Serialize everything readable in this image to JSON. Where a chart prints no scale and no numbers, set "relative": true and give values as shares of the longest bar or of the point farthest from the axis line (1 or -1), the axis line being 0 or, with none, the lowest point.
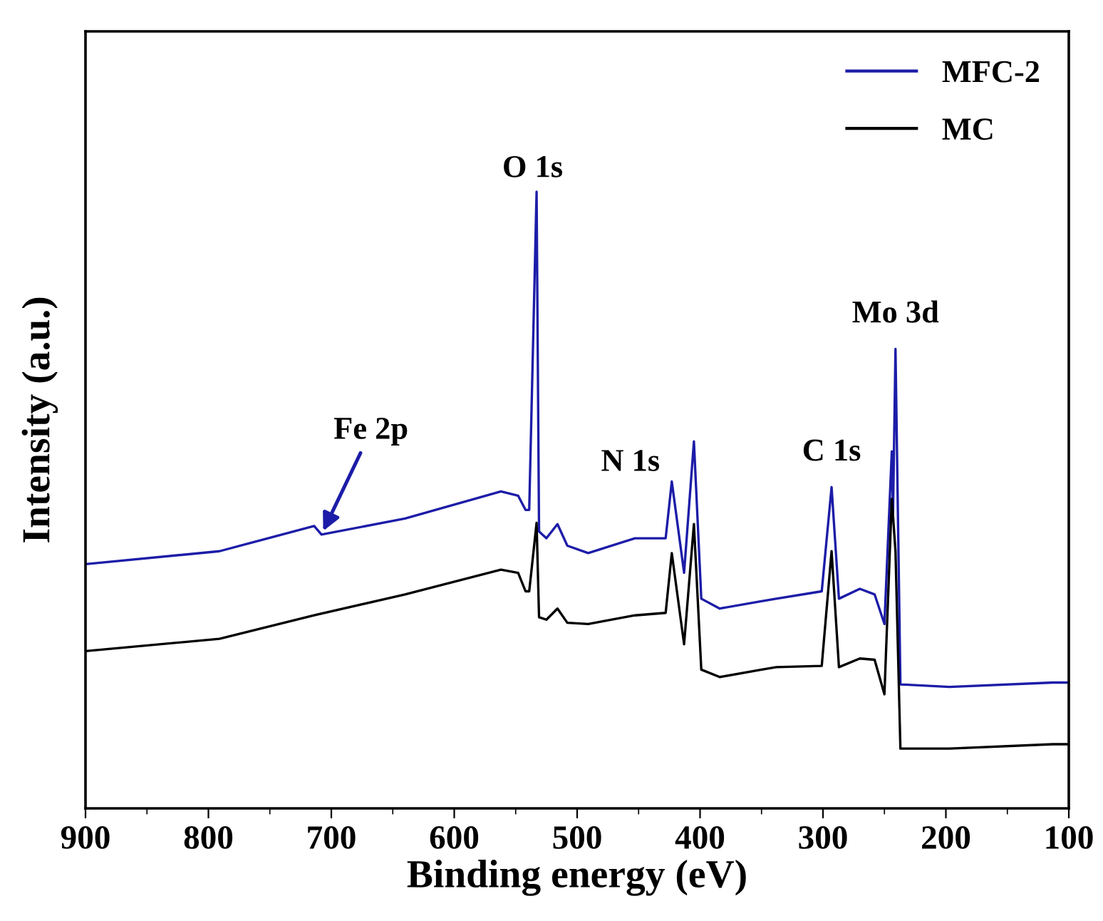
{
  "chart_data": {
    "type": "line",
    "relative": true,
    "xlabel": "Binding energy (eV)",
    "ylabel": "Intensity (a.u.)",
    "xlim": [
      900,
      100
    ],
    "xticks": [
      900,
      800,
      700,
      600,
      500,
      400,
      300,
      200,
      100
    ],
    "legend": "top right",
    "grid": false,
    "marker": "none",
    "line_style": "solid",
    "series": [
      {
        "name": "MFC-2",
        "color": "#1c1ca8",
        "x": [
          900,
          791,
          714,
          708,
          640,
          562,
          548,
          542,
          539,
          533,
          531,
          525,
          516,
          508,
          491,
          453,
          428,
          423,
          413,
          405,
          399,
          384,
          350,
          338,
          301,
          293,
          287,
          270,
          258,
          250,
          244,
          243,
          241,
          237,
          197,
          113,
          100
        ],
        "values": [
          0.396,
          0.417,
          0.458,
          0.444,
          0.47,
          0.514,
          0.507,
          0.484,
          0.484,
          1.0,
          0.449,
          0.438,
          0.461,
          0.426,
          0.414,
          0.438,
          0.438,
          0.53,
          0.382,
          0.595,
          0.34,
          0.324,
          0.336,
          0.34,
          0.352,
          0.521,
          0.34,
          0.356,
          0.347,
          0.299,
          0.579,
          0.479,
          0.745,
          0.201,
          0.197,
          0.204,
          0.204
        ]
      },
      {
        "name": "MC",
        "color": "#000000",
        "x": [
          900,
          791,
          714,
          640,
          562,
          548,
          542,
          539,
          533,
          531,
          525,
          516,
          508,
          491,
          453,
          428,
          423,
          413,
          405,
          399,
          384,
          350,
          338,
          301,
          293,
          287,
          270,
          258,
          250,
          244,
          241,
          237,
          197,
          113,
          100
        ],
        "values": [
          0.255,
          0.275,
          0.313,
          0.347,
          0.387,
          0.382,
          0.352,
          0.352,
          0.463,
          0.31,
          0.306,
          0.324,
          0.301,
          0.299,
          0.313,
          0.317,
          0.414,
          0.266,
          0.461,
          0.225,
          0.213,
          0.225,
          0.229,
          0.231,
          0.417,
          0.229,
          0.243,
          0.241,
          0.185,
          0.502,
          0.417,
          0.097,
          0.097,
          0.104,
          0.104
        ]
      }
    ],
    "annotations": [
      {
        "text": "O 1s",
        "x": 533,
        "y": 1.0
      },
      {
        "text": "N 1s",
        "x": 423,
        "y": 0.53
      },
      {
        "text": "C 1s",
        "x": 293,
        "y": 0.521
      },
      {
        "text": "Mo 3d",
        "x": 241,
        "y": 0.745
      },
      {
        "text": "Fe 2p",
        "x": 708,
        "y": 0.444
      }
    ]
  }
}
